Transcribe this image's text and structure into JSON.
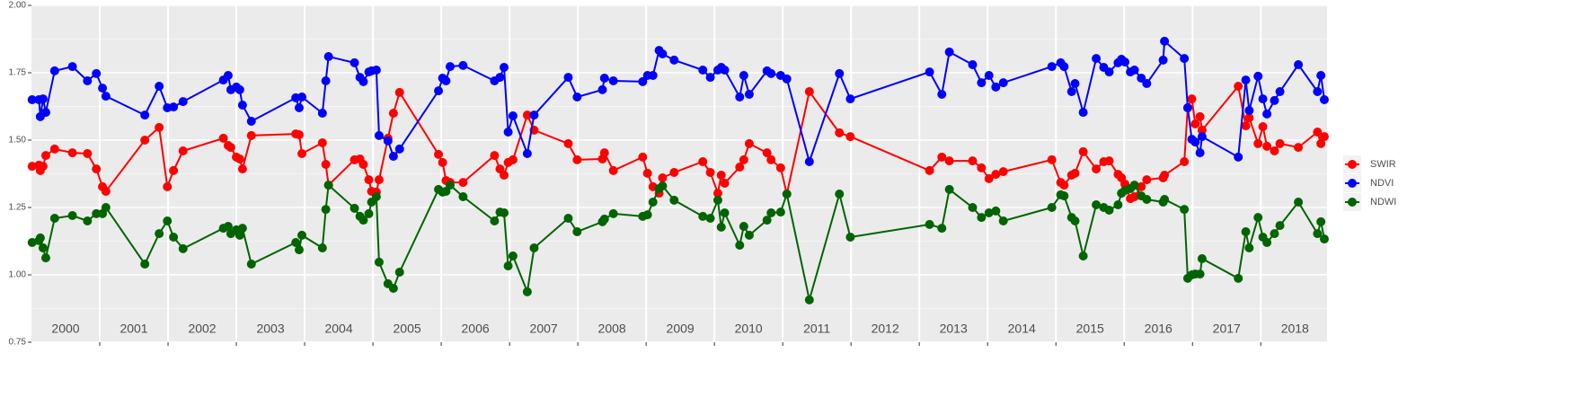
{
  "chart_data": {
    "type": "line",
    "x": [
      2000.01,
      2000.11,
      2000.13,
      2000.17,
      2000.21,
      2000.34,
      2000.6,
      2000.82,
      2000.95,
      2001.04,
      2001.09,
      2001.66,
      2001.87,
      2001.99,
      2002.08,
      2002.22,
      2002.81,
      2002.88,
      2002.92,
      2003.0,
      2003.05,
      2003.09,
      2003.22,
      2003.87,
      2003.92,
      2003.96,
      2004.26,
      2004.31,
      2004.35,
      2004.73,
      2004.81,
      2004.86,
      2004.94,
      2004.98,
      2005.05,
      2005.09,
      2005.22,
      2005.3,
      2005.39,
      2005.96,
      2006.02,
      2006.07,
      2006.13,
      2006.32,
      2006.78,
      2006.86,
      2006.92,
      2006.98,
      2007.05,
      2007.26,
      2007.36,
      2007.86,
      2007.99,
      2008.36,
      2008.39,
      2008.52,
      2008.95,
      2009.02,
      2009.1,
      2009.19,
      2009.24,
      2009.41,
      2009.83,
      2009.94,
      2010.05,
      2010.1,
      2010.15,
      2010.37,
      2010.43,
      2010.51,
      2010.77,
      2010.83,
      2010.97,
      2011.06,
      2011.39,
      2011.83,
      2011.99,
      2013.15,
      2013.33,
      2013.44,
      2013.78,
      2013.91,
      2014.02,
      2014.12,
      2014.23,
      2014.94,
      2015.07,
      2015.12,
      2015.23,
      2015.28,
      2015.4,
      2015.59,
      2015.7,
      2015.78,
      2015.91,
      2015.96,
      2016.01,
      2016.09,
      2016.15,
      2016.25,
      2016.33,
      2016.57,
      2016.59,
      2016.88,
      2016.93,
      2016.99,
      2017.04,
      2017.11,
      2017.14,
      2017.67,
      2017.78,
      2017.83,
      2017.96,
      2018.03,
      2018.09,
      2018.2,
      2018.28,
      2018.55,
      2018.83,
      2018.88,
      2018.93
    ],
    "series": [
      {
        "name": "SWIR",
        "color": "#ff0000",
        "values": [
          1.403,
          1.407,
          1.387,
          1.403,
          1.443,
          1.467,
          1.453,
          1.45,
          1.393,
          1.327,
          1.31,
          1.5,
          1.547,
          1.327,
          1.387,
          1.46,
          1.507,
          1.48,
          1.473,
          1.437,
          1.43,
          1.393,
          1.517,
          1.523,
          1.52,
          1.45,
          1.49,
          1.41,
          1.333,
          1.427,
          1.43,
          1.41,
          1.353,
          1.31,
          1.307,
          1.353,
          1.507,
          1.6,
          1.677,
          1.447,
          1.417,
          1.35,
          1.343,
          1.343,
          1.443,
          1.393,
          1.37,
          1.417,
          1.427,
          1.593,
          1.537,
          1.487,
          1.427,
          1.43,
          1.453,
          1.387,
          1.437,
          1.377,
          1.327,
          1.303,
          1.36,
          1.38,
          1.42,
          1.38,
          1.303,
          1.37,
          1.34,
          1.4,
          1.427,
          1.487,
          1.453,
          1.427,
          1.397,
          1.3,
          1.68,
          1.527,
          1.513,
          1.387,
          1.437,
          1.423,
          1.423,
          1.397,
          1.357,
          1.373,
          1.383,
          1.427,
          1.343,
          1.333,
          1.37,
          1.377,
          1.457,
          1.393,
          1.42,
          1.423,
          1.373,
          1.36,
          1.337,
          1.283,
          1.29,
          1.327,
          1.353,
          1.36,
          1.37,
          1.42,
          1.62,
          1.653,
          1.56,
          1.587,
          1.537,
          1.7,
          1.553,
          1.583,
          1.487,
          1.55,
          1.477,
          1.46,
          1.487,
          1.473,
          1.53,
          1.487,
          1.513
        ]
      },
      {
        "name": "NDVI",
        "color": "#0000ff",
        "values": [
          1.65,
          1.65,
          1.587,
          1.653,
          1.603,
          1.757,
          1.773,
          1.72,
          1.747,
          1.693,
          1.663,
          1.593,
          1.7,
          1.62,
          1.623,
          1.643,
          1.723,
          1.74,
          1.687,
          1.697,
          1.687,
          1.63,
          1.57,
          1.657,
          1.62,
          1.66,
          1.6,
          1.72,
          1.81,
          1.787,
          1.733,
          1.717,
          1.753,
          1.757,
          1.76,
          1.517,
          1.497,
          1.44,
          1.467,
          1.683,
          1.73,
          1.72,
          1.773,
          1.777,
          1.72,
          1.733,
          1.77,
          1.53,
          1.59,
          1.45,
          1.593,
          1.733,
          1.66,
          1.687,
          1.73,
          1.72,
          1.717,
          1.74,
          1.74,
          1.833,
          1.82,
          1.797,
          1.76,
          1.733,
          1.76,
          1.77,
          1.76,
          1.66,
          1.74,
          1.67,
          1.757,
          1.747,
          1.74,
          1.727,
          1.42,
          1.747,
          1.653,
          1.753,
          1.67,
          1.827,
          1.78,
          1.713,
          1.74,
          1.697,
          1.713,
          1.773,
          1.787,
          1.773,
          1.68,
          1.71,
          1.603,
          1.803,
          1.77,
          1.753,
          1.787,
          1.8,
          1.79,
          1.753,
          1.76,
          1.73,
          1.71,
          1.797,
          1.867,
          1.803,
          1.62,
          1.503,
          1.493,
          1.453,
          1.513,
          1.437,
          1.723,
          1.61,
          1.737,
          1.653,
          1.597,
          1.647,
          1.68,
          1.78,
          1.68,
          1.74,
          1.65
        ]
      },
      {
        "name": "NDWI",
        "color": "#006400",
        "values": [
          1.12,
          1.127,
          1.137,
          1.1,
          1.063,
          1.21,
          1.22,
          1.2,
          1.227,
          1.227,
          1.25,
          1.04,
          1.153,
          1.2,
          1.14,
          1.097,
          1.173,
          1.18,
          1.153,
          1.167,
          1.147,
          1.173,
          1.04,
          1.12,
          1.093,
          1.147,
          1.1,
          1.243,
          1.333,
          1.247,
          1.217,
          1.203,
          1.227,
          1.27,
          1.29,
          1.047,
          0.967,
          0.95,
          1.01,
          1.317,
          1.307,
          1.31,
          1.333,
          1.29,
          1.2,
          1.233,
          1.23,
          1.033,
          1.07,
          0.937,
          1.1,
          1.21,
          1.16,
          1.197,
          1.207,
          1.227,
          1.217,
          1.223,
          1.27,
          1.32,
          1.33,
          1.277,
          1.217,
          1.21,
          1.277,
          1.177,
          1.23,
          1.11,
          1.18,
          1.147,
          1.203,
          1.23,
          1.233,
          1.3,
          0.907,
          1.3,
          1.14,
          1.187,
          1.173,
          1.317,
          1.25,
          1.213,
          1.23,
          1.237,
          1.2,
          1.25,
          1.297,
          1.293,
          1.213,
          1.2,
          1.07,
          1.26,
          1.25,
          1.24,
          1.26,
          1.303,
          1.313,
          1.32,
          1.333,
          1.293,
          1.28,
          1.27,
          1.28,
          1.243,
          0.987,
          1.0,
          1.003,
          1.003,
          1.06,
          0.987,
          1.16,
          1.1,
          1.213,
          1.14,
          1.12,
          1.153,
          1.183,
          1.27,
          1.153,
          1.197,
          1.133
        ]
      }
    ],
    "xlim": [
      2000,
      2018.97
    ],
    "ylim": [
      0.75,
      2.0
    ],
    "yticks": [
      0.75,
      {
        "value": 1.0,
        "label": "1.00"
      },
      1.25,
      {
        "value": 1.5,
        "label": "1.50"
      },
      1.75,
      {
        "value": 2.0,
        "label": "2.00"
      }
    ],
    "year_labels": [
      {
        "value": 2000.5,
        "label": "2000"
      },
      {
        "value": 2001.5,
        "label": "2001"
      },
      {
        "value": 2002.5,
        "label": "2002"
      },
      {
        "value": 2003.5,
        "label": "2003"
      },
      {
        "value": 2004.5,
        "label": "2004"
      },
      {
        "value": 2005.5,
        "label": "2005"
      },
      {
        "value": 2006.5,
        "label": "2006"
      },
      {
        "value": 2007.5,
        "label": "2007"
      },
      {
        "value": 2008.5,
        "label": "2008"
      },
      {
        "value": 2009.5,
        "label": "2009"
      },
      {
        "value": 2010.5,
        "label": "2010"
      },
      {
        "value": 2011.5,
        "label": "2011"
      },
      {
        "value": 2012.5,
        "label": "2012"
      },
      {
        "value": 2013.5,
        "label": "2013"
      },
      {
        "value": 2014.5,
        "label": "2014"
      },
      {
        "value": 2015.5,
        "label": "2015"
      },
      {
        "value": 2016.5,
        "label": "2016"
      },
      {
        "value": 2017.5,
        "label": "2017"
      },
      {
        "value": 2018.5,
        "label": "2018"
      }
    ],
    "grid": true,
    "legend": "right"
  }
}
